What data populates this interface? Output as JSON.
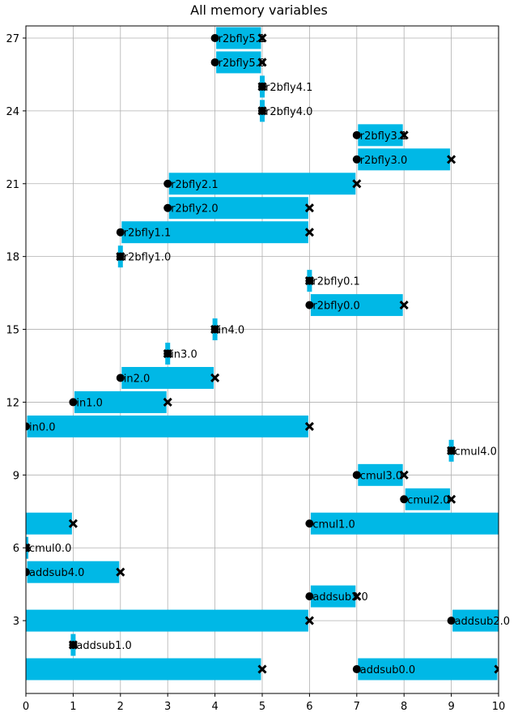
{
  "chart_data": {
    "type": "bar",
    "orientation": "horizontal-intervals",
    "title": "All memory variables",
    "xlabel": "",
    "ylabel": "",
    "xlim": [
      0,
      10
    ],
    "ylim": [
      0,
      27.5
    ],
    "xticks": [
      0,
      1,
      2,
      3,
      4,
      5,
      6,
      7,
      8,
      9,
      10
    ],
    "yticks": [
      3,
      6,
      9,
      12,
      15,
      18,
      21,
      24,
      27
    ],
    "grid": true,
    "bar_color": "#00b8e6",
    "start_marker": "circle",
    "end_marker": "x",
    "variables": [
      {
        "y": 27,
        "label": "r2bfly5.1",
        "start": 4,
        "end": 5
      },
      {
        "y": 26,
        "label": "r2bfly5.0",
        "start": 4,
        "end": 5
      },
      {
        "y": 25,
        "label": "r2bfly4.1",
        "start": 5,
        "end": 5
      },
      {
        "y": 24,
        "label": "r2bfly4.0",
        "start": 5,
        "end": 5
      },
      {
        "y": 23,
        "label": "r2bfly3.1",
        "start": 7,
        "end": 8
      },
      {
        "y": 22,
        "label": "r2bfly3.0",
        "start": 7,
        "end": 9
      },
      {
        "y": 21,
        "label": "r2bfly2.1",
        "start": 3,
        "end": 7
      },
      {
        "y": 20,
        "label": "r2bfly2.0",
        "start": 3,
        "end": 6
      },
      {
        "y": 19,
        "label": "r2bfly1.1",
        "start": 2,
        "end": 6
      },
      {
        "y": 18,
        "label": "r2bfly1.0",
        "start": 2,
        "end": 2
      },
      {
        "y": 17,
        "label": "r2bfly0.1",
        "start": 6,
        "end": 6
      },
      {
        "y": 16,
        "label": "r2bfly0.0",
        "start": 6,
        "end": 8
      },
      {
        "y": 15,
        "label": "in4.0",
        "start": 4,
        "end": 4
      },
      {
        "y": 14,
        "label": "in3.0",
        "start": 3,
        "end": 3
      },
      {
        "y": 13,
        "label": "in2.0",
        "start": 2,
        "end": 4
      },
      {
        "y": 12,
        "label": "in1.0",
        "start": 1,
        "end": 3
      },
      {
        "y": 11,
        "label": "in0.0",
        "start": 0,
        "end": 6
      },
      {
        "y": 10,
        "label": "cmul4.0",
        "start": 9,
        "end": 9
      },
      {
        "y": 9,
        "label": "cmul3.0",
        "start": 7,
        "end": 8
      },
      {
        "y": 8,
        "label": "cmul2.0",
        "start": 8,
        "end": 9
      },
      {
        "y": 7,
        "label": "cmul1.0",
        "start": 6,
        "end": 11
      },
      {
        "y": 7,
        "label": "",
        "start": -1,
        "end": 1
      },
      {
        "y": 6,
        "label": "cmul0.0",
        "start": 0,
        "end": 0
      },
      {
        "y": 5,
        "label": "addsub4.0",
        "start": 0,
        "end": 2
      },
      {
        "y": 4,
        "label": "addsub3.0",
        "start": 6,
        "end": 7
      },
      {
        "y": 3,
        "label": "addsub2.0",
        "start": 9,
        "end": 12
      },
      {
        "y": 3,
        "label": "",
        "start": -2,
        "end": 6
      },
      {
        "y": 2,
        "label": "addsub1.0",
        "start": 1,
        "end": 1
      },
      {
        "y": 1,
        "label": "addsub0.0",
        "start": 7,
        "end": 10
      },
      {
        "y": 1,
        "label": "",
        "start": -1,
        "end": 5
      }
    ]
  }
}
